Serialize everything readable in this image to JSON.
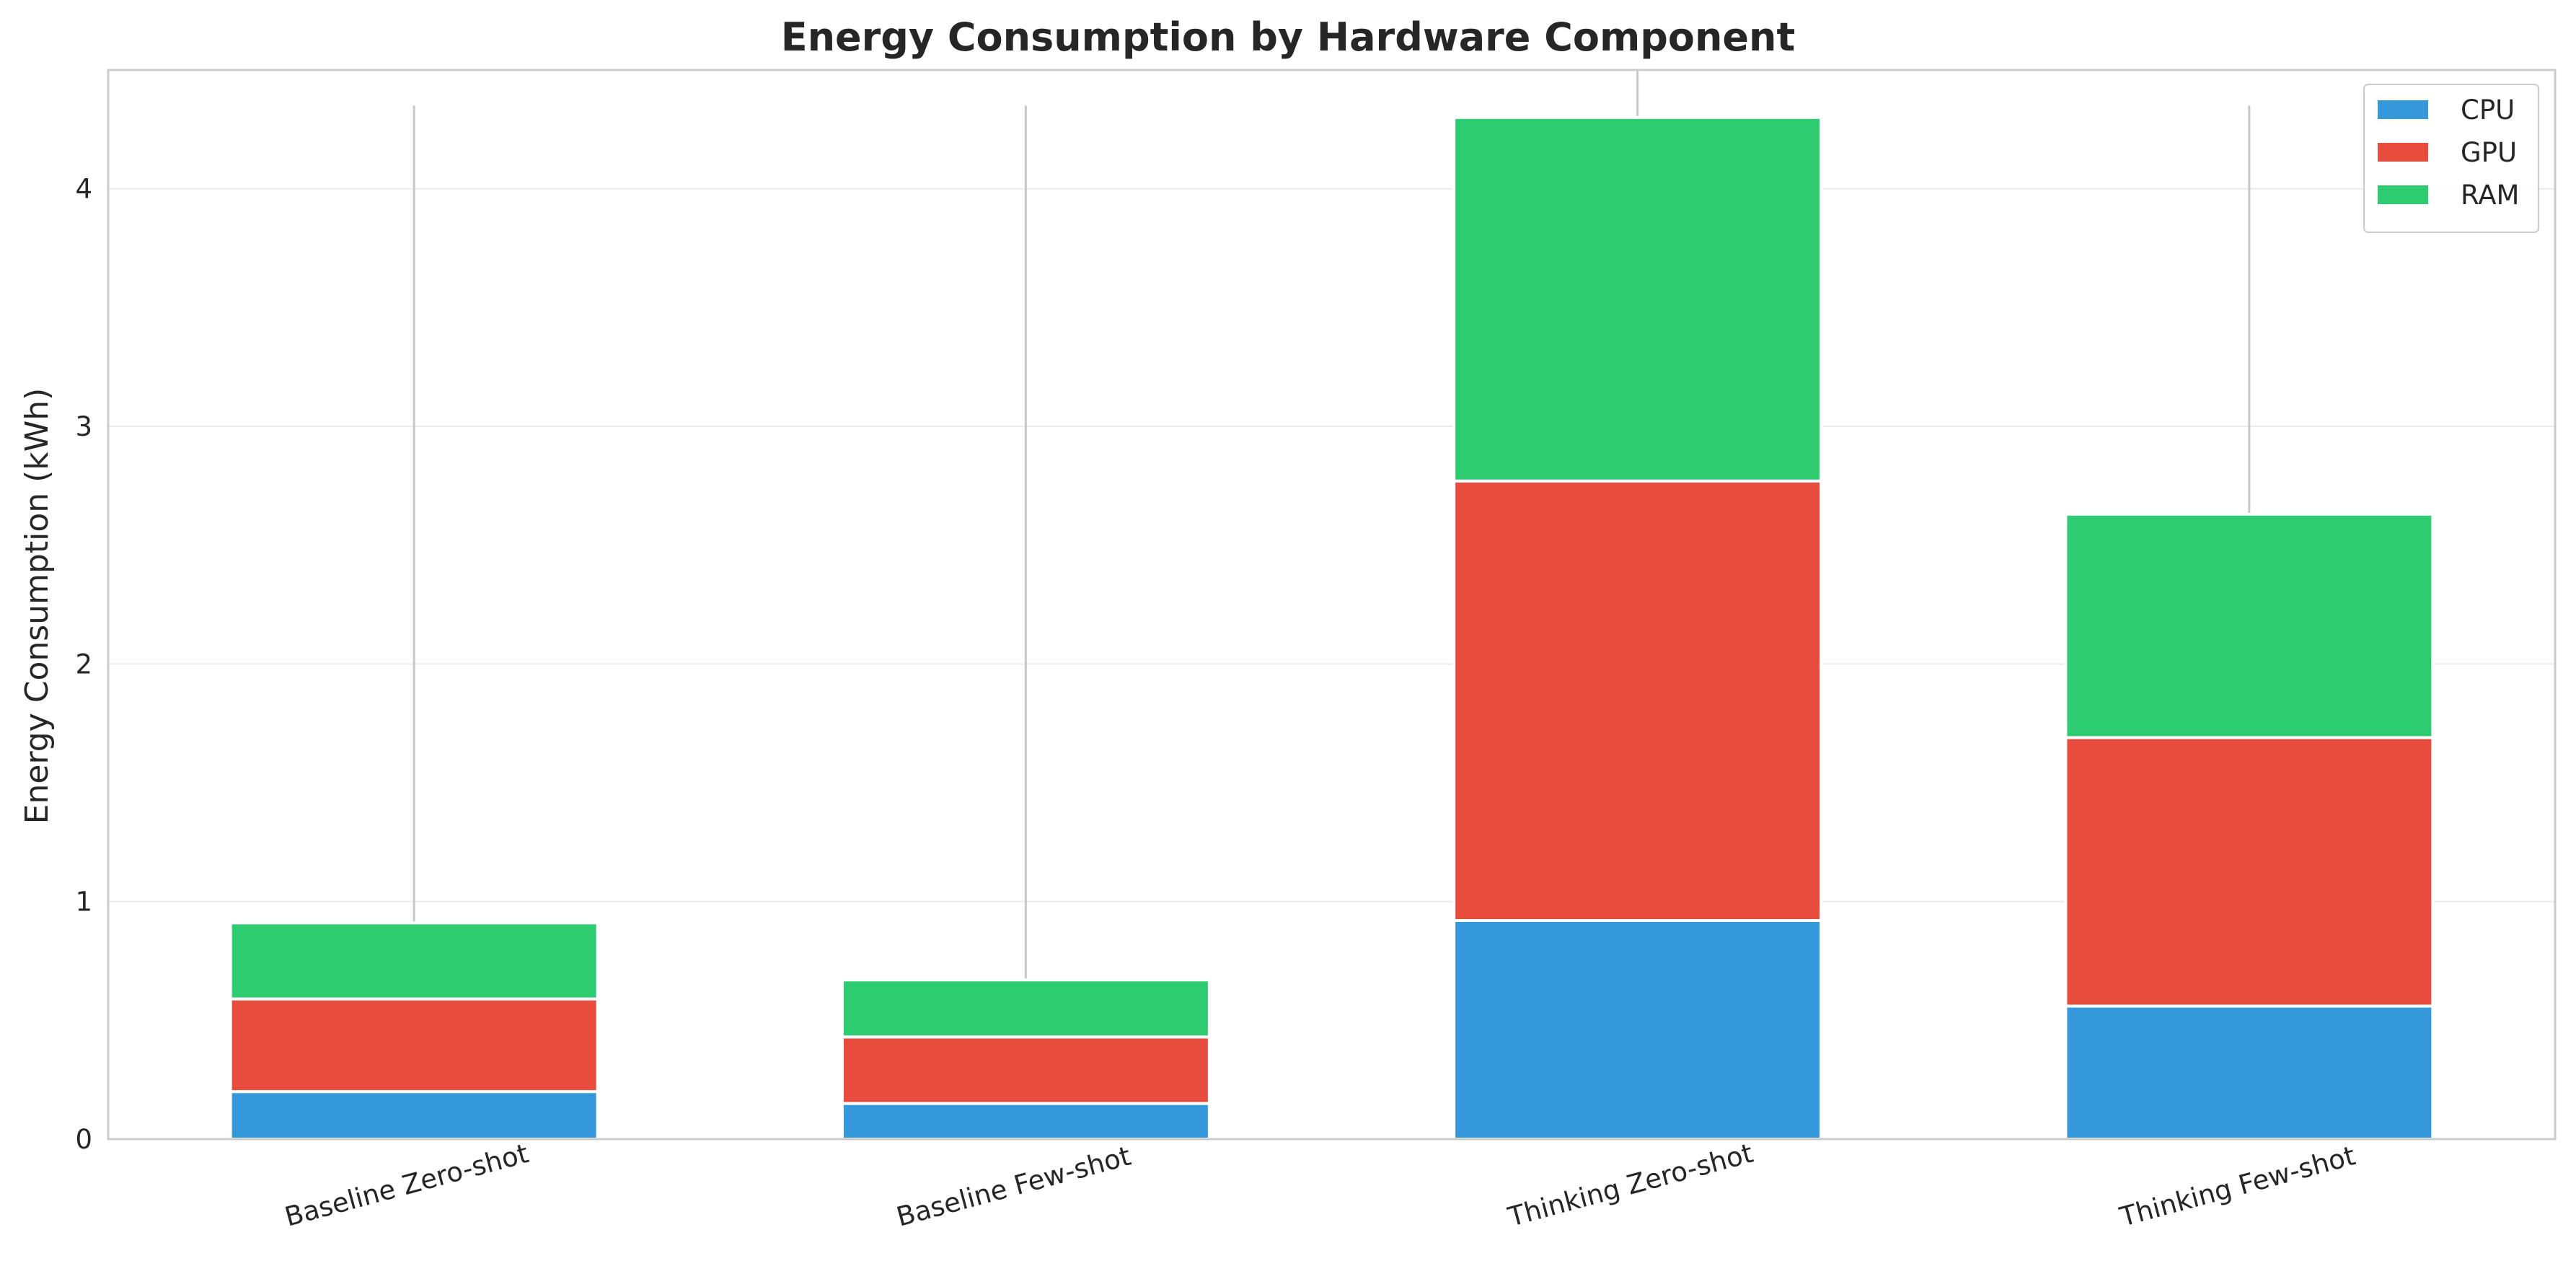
{
  "chart_data": {
    "type": "bar",
    "stacked": true,
    "title": "Energy Consumption by Hardware Component",
    "xlabel": "",
    "ylabel": "Energy Consumption (kWh)",
    "ylim": [
      0,
      4.5
    ],
    "yticks": [
      0,
      1,
      2,
      3,
      4
    ],
    "grid": true,
    "legend_position": "top-right",
    "categories": [
      "Baseline Zero-shot",
      "Baseline Few-shot",
      "Thinking Zero-shot",
      "Thinking Few-shot"
    ],
    "series": [
      {
        "name": "CPU",
        "color": "#3498db",
        "values": [
          0.2,
          0.15,
          0.92,
          0.56
        ]
      },
      {
        "name": "GPU",
        "color": "#e74c3c",
        "values": [
          0.39,
          0.28,
          1.85,
          1.13
        ]
      },
      {
        "name": "RAM",
        "color": "#2ecc71",
        "values": [
          0.32,
          0.24,
          1.53,
          0.94
        ]
      }
    ],
    "error_bar_upper": [
      4.35,
      4.35,
      4.5,
      4.35
    ]
  }
}
